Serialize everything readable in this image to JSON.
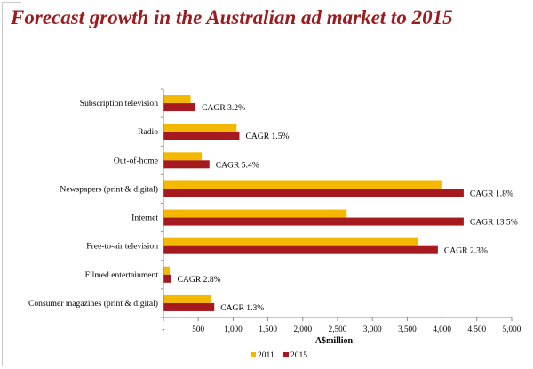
{
  "title": "Forecast growth in the Australian ad market to 2015",
  "chart_data": {
    "type": "bar",
    "orientation": "horizontal",
    "categories": [
      "Subscription television",
      "Radio",
      "Out-of-home",
      "Newspapers (print & digital)",
      "Internet",
      "Free-to-air television",
      "Filmed entertainment",
      "Consumer magazines (print & digital)"
    ],
    "series": [
      {
        "name": "2011",
        "color": "#f5b800",
        "values": [
          390,
          1050,
          550,
          3990,
          2630,
          3650,
          90,
          690
        ]
      },
      {
        "name": "2015",
        "color": "#a6191e",
        "values": [
          460,
          1090,
          660,
          4310,
          4310,
          3940,
          110,
          730
        ]
      }
    ],
    "annotations": [
      "CAGR 3.2%",
      "CAGR 1.5%",
      "CAGR 5.4%",
      "CAGR 1.8%",
      "CAGR 13.5%",
      "CAGR 2.3%",
      "CAGR 2.8%",
      "CAGR 1.3%"
    ],
    "xlabel": "A$million",
    "xlim": [
      0,
      5000
    ],
    "x_ticks": [
      "-",
      "500",
      "1,000",
      "1,500",
      "2,000",
      "2,500",
      "3,000",
      "3,500",
      "4,000",
      "4,500",
      "5,000"
    ],
    "legend": [
      "2011",
      "2015"
    ],
    "legend_position": "bottom",
    "grid": false
  }
}
